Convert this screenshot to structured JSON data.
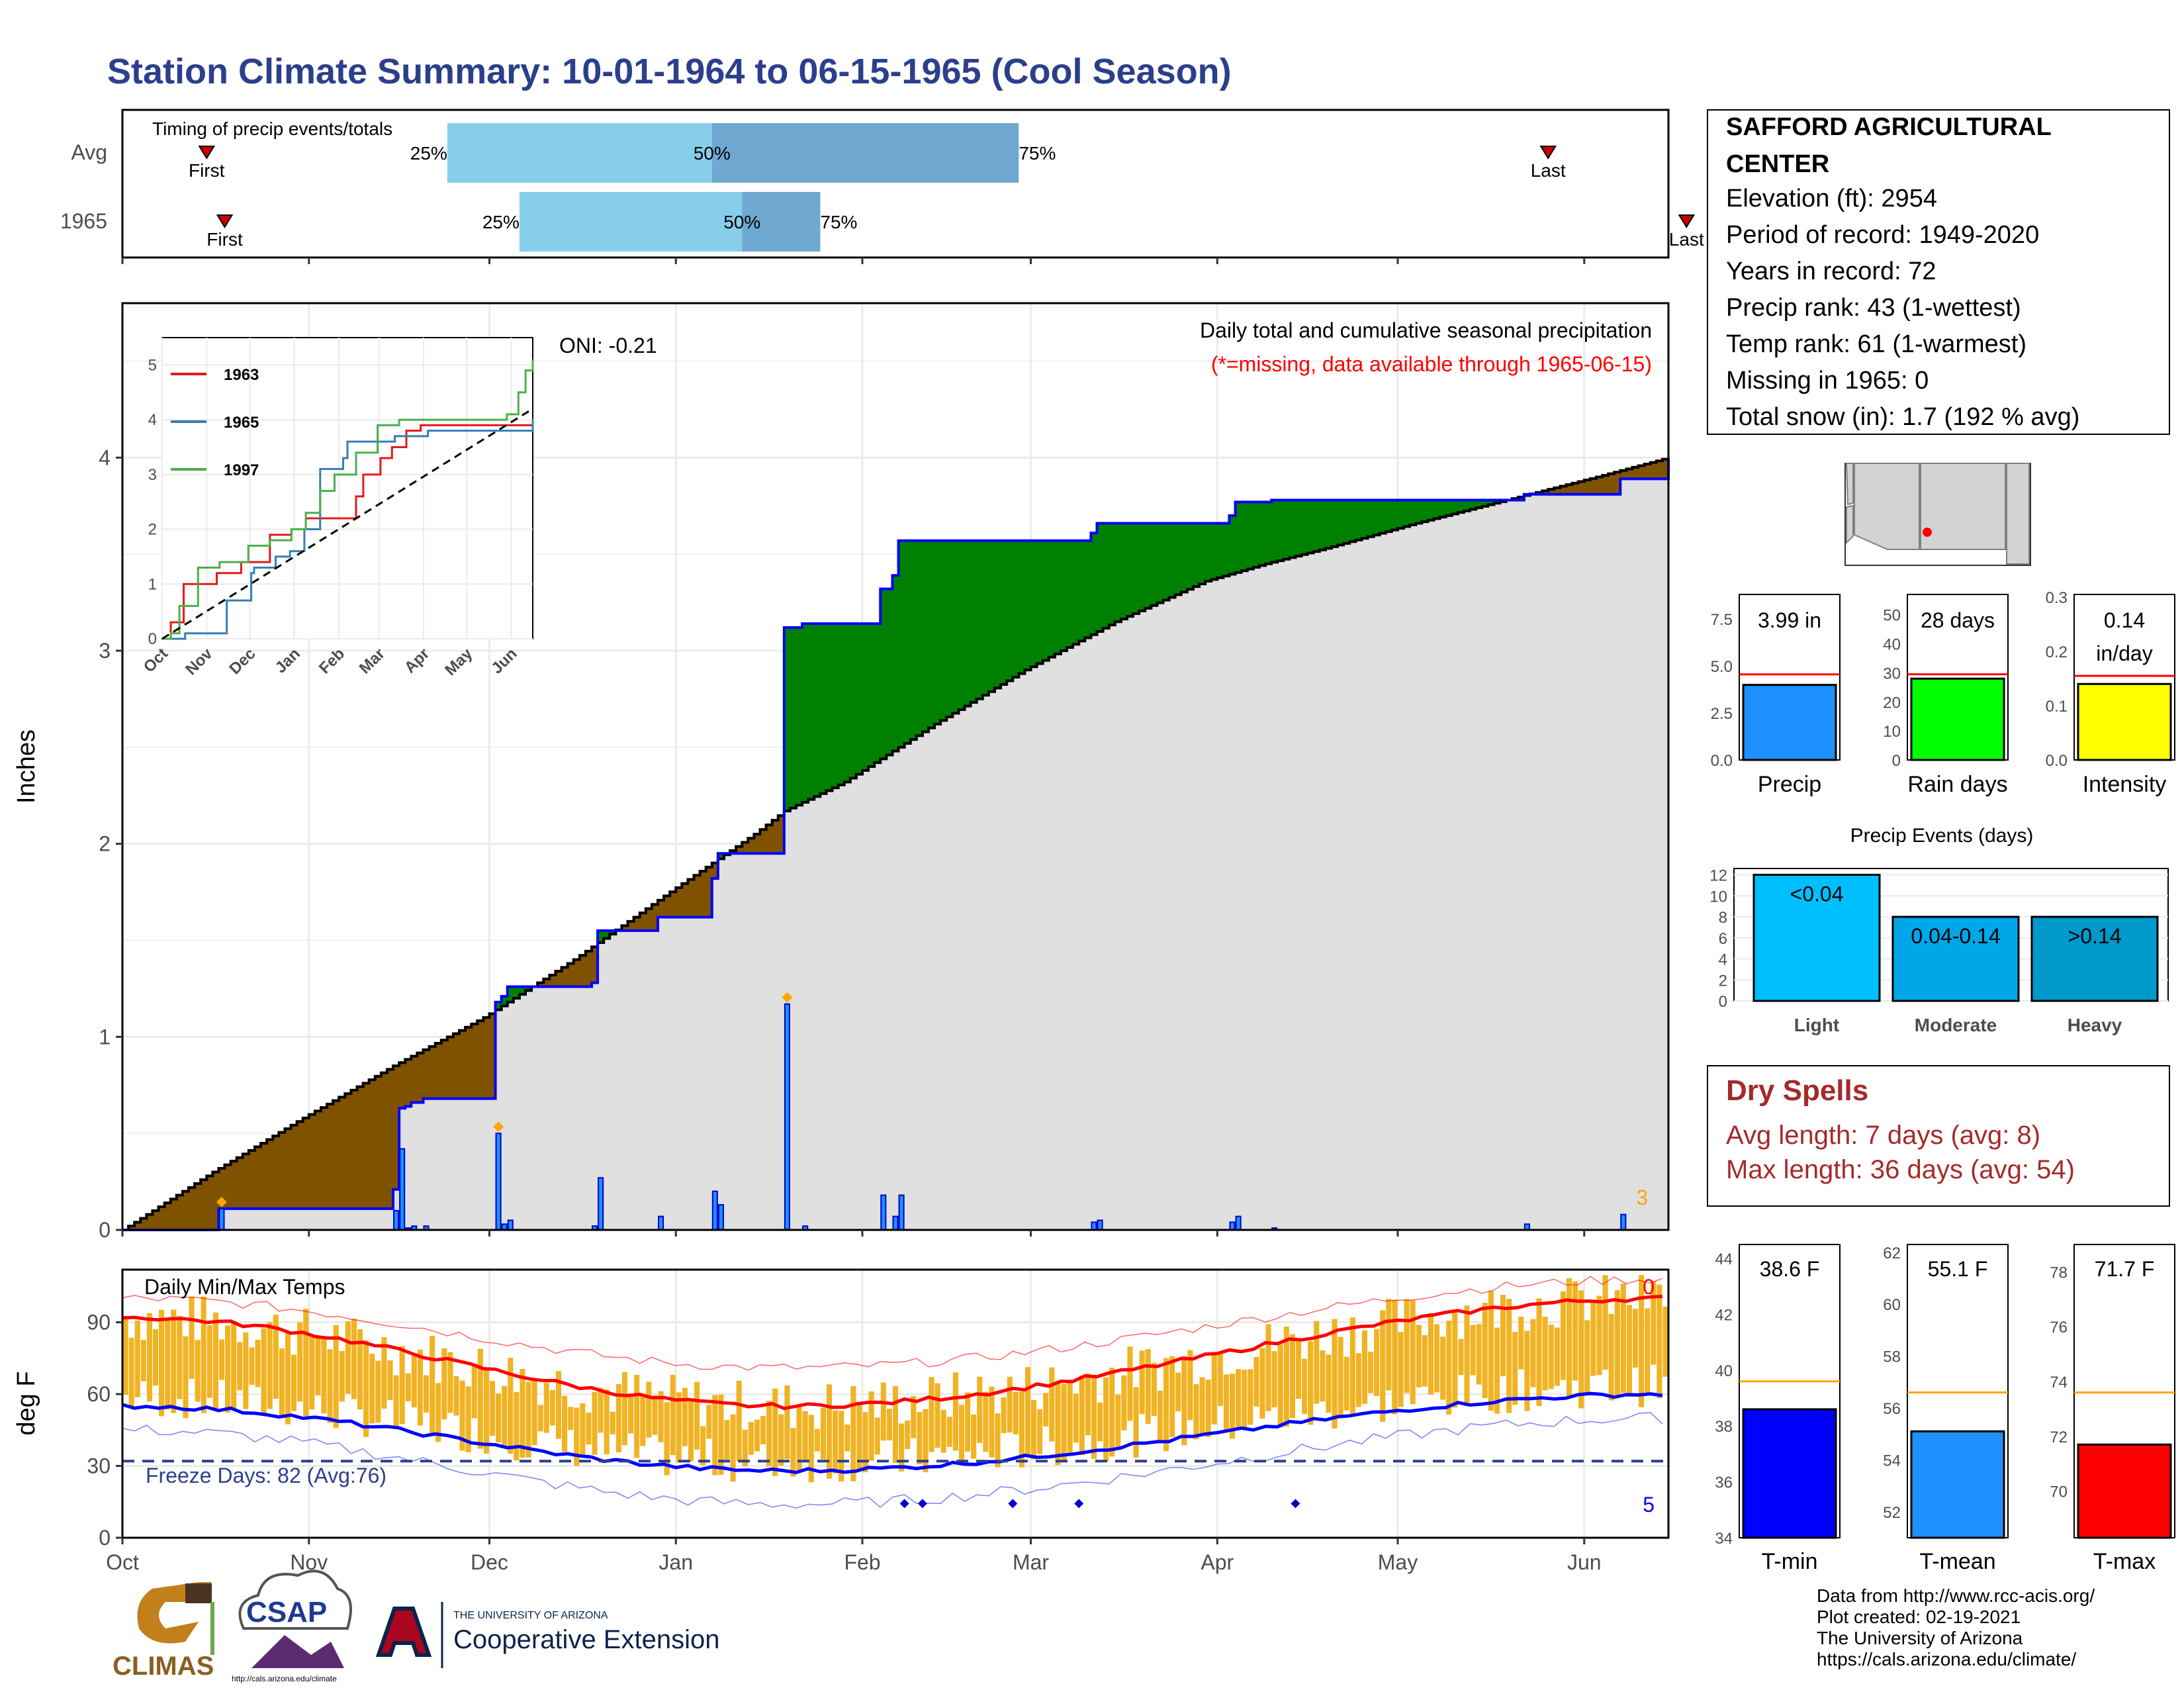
{
  "title": "Station Climate Summary: 10-01-1964 to 06-15-1965 (Cool Season)",
  "colors": {
    "title": "#2b3f8c",
    "above": "#7f5200",
    "below": "#008000",
    "cum_obs": "#0000ff",
    "cum_avg": "#000000",
    "fill_grey": "#e0e0e0",
    "temp_bar": "#f0b323",
    "tmax_avg": "#ff0000",
    "tmin_avg": "#0000ff",
    "precip_bar": "#1e90ff",
    "raindays_bar": "#00ff00",
    "intensity_bar": "#ffff00",
    "light": "#00bfff",
    "moderate": "#00a7e8",
    "heavy": "#0099cc",
    "tmin_bar": "#0000ff",
    "tmean_bar": "#1e90ff",
    "tmax_bar": "#ff0000",
    "dry_spells": "#a52a2a",
    "orange": "#ffa500",
    "red": "#ff0000"
  },
  "timing": {
    "label": "Timing of precip events/totals",
    "rows": [
      {
        "name": "Avg",
        "first_day": 14,
        "p25_day": 54,
        "p50_day": 98,
        "p75_day": 149,
        "last_day": 237,
        "first_label": "First",
        "last_label": "Last",
        "p25_label": "25%",
        "p50_label": "50%",
        "p75_label": "75%"
      },
      {
        "name": "1965",
        "first_day": 17,
        "p25_day": 66,
        "p50_day": 103,
        "p75_day": 116,
        "last_day": 260,
        "first_label": "First",
        "last_label": "Last",
        "p25_label": "25%",
        "p50_label": "50%",
        "p75_label": "75%"
      }
    ]
  },
  "precip_panel": {
    "subtitle": "Daily total and cumulative seasonal precipitation",
    "missing_note": "(*=missing, data available through 1965-06-15)",
    "oni": "ONI: -0.21",
    "ylabel": "Inches",
    "yticks": [
      "0",
      "1",
      "2",
      "3",
      "4"
    ],
    "corner_count": "3"
  },
  "inset": {
    "yticks": [
      "0",
      "1",
      "2",
      "3",
      "4",
      "5"
    ],
    "xticks": [
      "Oct",
      "Nov",
      "Dec",
      "Jan",
      "Feb",
      "Mar",
      "Apr",
      "May",
      "Jun"
    ],
    "legend": [
      "1963",
      "1965",
      "1997"
    ]
  },
  "temp_panel": {
    "label": "Daily Min/Max Temps",
    "ylabel": "deg F",
    "yticks": [
      "0",
      "30",
      "60",
      "90"
    ],
    "freeze_text": "Freeze Days: 82 (Avg:76)",
    "corner_top": "0",
    "corner_bottom": "5"
  },
  "xaxis": {
    "months": [
      "Oct",
      "Nov",
      "Dec",
      "Jan",
      "Feb",
      "Mar",
      "Apr",
      "May",
      "Jun"
    ]
  },
  "station": {
    "name_line1": "SAFFORD AGRICULTURAL",
    "name_line2": "CENTER",
    "lines": [
      "Elevation (ft): 2954",
      "Period of record: 1949-2020",
      "Years in record: 72",
      "Precip rank: 43 (1-wettest)",
      "Temp rank: 61 (1-warmest)",
      "Missing in 1965: 0",
      "Total snow (in): 1.7 (192 % avg)"
    ]
  },
  "summary_bars": [
    {
      "label": "Precip",
      "value_text": "3.99 in",
      "yticks": [
        "0.0",
        "2.5",
        "5.0",
        "7.5"
      ]
    },
    {
      "label": "Rain days",
      "value_text": "28 days",
      "yticks": [
        "0",
        "10",
        "20",
        "30",
        "40",
        "50"
      ]
    },
    {
      "label": "Intensity",
      "value_text": "0.14",
      "value_text2": "in/day",
      "yticks": [
        "0.0",
        "0.1",
        "0.2",
        "0.3"
      ]
    }
  ],
  "events": {
    "title": "Precip Events (days)",
    "yticks": [
      "0",
      "2",
      "4",
      "6",
      "8",
      "10",
      "12"
    ],
    "cats": [
      "Light",
      "Moderate",
      "Heavy"
    ],
    "labels": [
      "<0.04",
      "0.04-0.14",
      ">0.14"
    ]
  },
  "dry_spells": {
    "title": "Dry Spells",
    "avg_line": "Avg length: 7 days (avg: 8)",
    "max_line": "Max length: 36 days (avg: 54)"
  },
  "temp_bars": [
    {
      "label": "T-min",
      "value_text": "38.6 F",
      "yticks": [
        "34",
        "36",
        "38",
        "40",
        "42",
        "44"
      ]
    },
    {
      "label": "T-mean",
      "value_text": "55.1 F",
      "yticks": [
        "52",
        "54",
        "56",
        "58",
        "60",
        "62"
      ]
    },
    {
      "label": "T-max",
      "value_text": "71.7 F",
      "yticks": [
        "70",
        "72",
        "74",
        "76",
        "78"
      ]
    }
  ],
  "logos": {
    "climas": "CLIMAS",
    "csap": "CSAP",
    "csap_url": "http://cals.arizona.edu/climate",
    "ua_small": "THE UNIVERSITY OF ARIZONA",
    "ua_big": "Cooperative Extension"
  },
  "credits": [
    "Data from http://www.rcc-acis.org/",
    "Plot created: 02-19-2021",
    "The University of Arizona",
    "https://cals.arizona.edu/climate/"
  ],
  "chart_data": [
    {
      "type": "area",
      "title": "Daily total and cumulative seasonal precipitation",
      "ylabel": "Inches",
      "ylim": [
        0,
        4.8
      ],
      "xlim_days": [
        0,
        257
      ],
      "daily_precip": [
        [
          16,
          0.11
        ],
        [
          45,
          0.1
        ],
        [
          46,
          0.42
        ],
        [
          47,
          0.01
        ],
        [
          48,
          0.02
        ],
        [
          50,
          0.02
        ],
        [
          62,
          0.5
        ],
        [
          63,
          0.03
        ],
        [
          64,
          0.05
        ],
        [
          78,
          0.02
        ],
        [
          79,
          0.27
        ],
        [
          89,
          0.07
        ],
        [
          98,
          0.2
        ],
        [
          99,
          0.13
        ],
        [
          110,
          1.17
        ],
        [
          113,
          0.02
        ],
        [
          126,
          0.18
        ],
        [
          128,
          0.07
        ],
        [
          129,
          0.18
        ],
        [
          161,
          0.04
        ],
        [
          162,
          0.05
        ],
        [
          184,
          0.04
        ],
        [
          185,
          0.07
        ],
        [
          191,
          0.01
        ],
        [
          233,
          0.03
        ],
        [
          249,
          0.08
        ]
      ],
      "cumulative_1965": [
        [
          0,
          0
        ],
        [
          15,
          0
        ],
        [
          16,
          0.11
        ],
        [
          44,
          0.11
        ],
        [
          45,
          0.21
        ],
        [
          46,
          0.63
        ],
        [
          47,
          0.64
        ],
        [
          48,
          0.66
        ],
        [
          50,
          0.68
        ],
        [
          61,
          0.68
        ],
        [
          62,
          1.18
        ],
        [
          63,
          1.21
        ],
        [
          64,
          1.26
        ],
        [
          78,
          1.28
        ],
        [
          79,
          1.55
        ],
        [
          88,
          1.55
        ],
        [
          89,
          1.62
        ],
        [
          98,
          1.82
        ],
        [
          99,
          1.95
        ],
        [
          109,
          1.95
        ],
        [
          110,
          3.12
        ],
        [
          113,
          3.14
        ],
        [
          126,
          3.32
        ],
        [
          128,
          3.39
        ],
        [
          129,
          3.57
        ],
        [
          160,
          3.57
        ],
        [
          161,
          3.61
        ],
        [
          162,
          3.66
        ],
        [
          184,
          3.7
        ],
        [
          185,
          3.77
        ],
        [
          191,
          3.78
        ],
        [
          233,
          3.81
        ],
        [
          249,
          3.89
        ],
        [
          257,
          3.99
        ]
      ],
      "cumulative_avg": [
        [
          0,
          0
        ],
        [
          15,
          0.3
        ],
        [
          30,
          0.58
        ],
        [
          45,
          0.85
        ],
        [
          60,
          1.1
        ],
        [
          75,
          1.4
        ],
        [
          90,
          1.73
        ],
        [
          105,
          2.05
        ],
        [
          110,
          2.17
        ],
        [
          120,
          2.32
        ],
        [
          135,
          2.62
        ],
        [
          150,
          2.9
        ],
        [
          165,
          3.15
        ],
        [
          180,
          3.36
        ],
        [
          190,
          3.45
        ],
        [
          200,
          3.53
        ],
        [
          215,
          3.66
        ],
        [
          230,
          3.78
        ],
        [
          245,
          3.9
        ],
        [
          257,
          4.0
        ]
      ],
      "series": [
        {
          "name": "1963"
        },
        {
          "name": "1965"
        },
        {
          "name": "1997"
        }
      ]
    },
    {
      "type": "line",
      "title": "Daily Min/Max Temps",
      "ylabel": "deg F",
      "ylim": [
        0,
        112
      ],
      "avg_tmax_start": 92,
      "avg_tmax_mid": 55,
      "avg_tmax_end": 100,
      "avg_tmin_start": 55,
      "avg_tmin_mid": 28,
      "avg_tmin_end": 60,
      "freeze_line": 32
    }
  ]
}
